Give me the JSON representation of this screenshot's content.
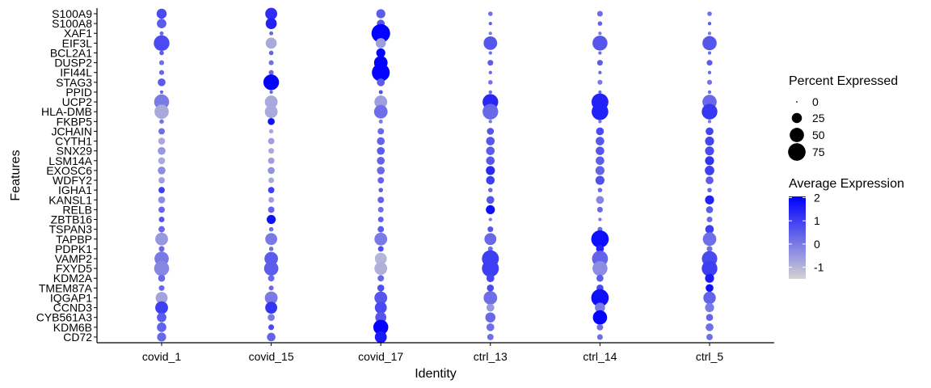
{
  "chart_data": {
    "type": "dotplot",
    "xlabel": "Identity",
    "ylabel": "Features",
    "identities": [
      "covid_1",
      "covid_15",
      "covid_17",
      "ctrl_13",
      "ctrl_14",
      "ctrl_5"
    ],
    "features": [
      "S100A9",
      "S100A8",
      "XAF1",
      "EIF3L",
      "BCL2A1",
      "DUSP2",
      "IFI44L",
      "STAG3",
      "PPID",
      "UCP2",
      "HLA-DMB",
      "FKBP5",
      "JCHAIN",
      "CYTH1",
      "SNX29",
      "LSM14A",
      "EXOSC6",
      "WDFY2",
      "IGHA1",
      "KANSL1",
      "RELB",
      "ZBTB16",
      "TSPAN3",
      "TAPBP",
      "PDPK1",
      "VAMP2",
      "FXYD5",
      "KDM2A",
      "TMEM87A",
      "IQGAP1",
      "CCND3",
      "CYB561A3",
      "KDM6B",
      "CD72"
    ],
    "percent_expressed": [
      [
        25,
        35,
        20,
        5,
        8,
        5
      ],
      [
        22,
        30,
        15,
        3,
        5,
        3
      ],
      [
        4,
        4,
        85,
        3,
        3,
        3
      ],
      [
        60,
        30,
        25,
        45,
        55,
        50
      ],
      [
        5,
        5,
        20,
        3,
        3,
        3
      ],
      [
        6,
        6,
        45,
        8,
        8,
        8
      ],
      [
        6,
        6,
        78,
        3,
        3,
        3
      ],
      [
        15,
        60,
        15,
        5,
        6,
        6
      ],
      [
        3,
        3,
        4,
        3,
        3,
        3
      ],
      [
        55,
        40,
        40,
        60,
        70,
        50
      ],
      [
        50,
        40,
        45,
        60,
        68,
        60
      ],
      [
        5,
        12,
        4,
        3,
        3,
        3
      ],
      [
        10,
        5,
        10,
        12,
        15,
        15
      ],
      [
        12,
        10,
        15,
        18,
        18,
        20
      ],
      [
        15,
        8,
        15,
        18,
        18,
        20
      ],
      [
        12,
        10,
        15,
        18,
        18,
        20
      ],
      [
        15,
        12,
        15,
        20,
        20,
        22
      ],
      [
        10,
        8,
        10,
        18,
        20,
        15
      ],
      [
        10,
        10,
        5,
        5,
        5,
        5
      ],
      [
        12,
        8,
        10,
        15,
        15,
        20
      ],
      [
        10,
        10,
        8,
        20,
        8,
        12
      ],
      [
        8,
        20,
        8,
        3,
        3,
        8
      ],
      [
        10,
        5,
        10,
        8,
        6,
        18
      ],
      [
        40,
        35,
        40,
        35,
        75,
        45
      ],
      [
        8,
        5,
        8,
        6,
        15,
        8
      ],
      [
        50,
        45,
        35,
        70,
        62,
        58
      ],
      [
        55,
        50,
        40,
        70,
        55,
        60
      ],
      [
        12,
        10,
        10,
        15,
        12,
        20
      ],
      [
        8,
        6,
        12,
        12,
        12,
        15
      ],
      [
        35,
        40,
        40,
        45,
        75,
        38
      ],
      [
        40,
        35,
        35,
        15,
        25,
        20
      ],
      [
        22,
        12,
        30,
        25,
        50,
        12
      ],
      [
        22,
        8,
        55,
        15,
        10,
        15
      ],
      [
        20,
        18,
        35,
        10,
        8,
        10
      ]
    ],
    "average_expression": [
      [
        0.8,
        1.3,
        0.5,
        0.2,
        0.2,
        0.2
      ],
      [
        0.5,
        1.5,
        0.6,
        0.4,
        0.4,
        0.5
      ],
      [
        0.3,
        0.3,
        2.0,
        0.0,
        0.0,
        0.0
      ],
      [
        0.8,
        -0.8,
        -0.6,
        0.6,
        0.6,
        0.6
      ],
      [
        0.5,
        0.4,
        2.0,
        0.2,
        0.2,
        0.2
      ],
      [
        0.2,
        0.2,
        2.0,
        0.5,
        0.5,
        0.5
      ],
      [
        0.3,
        0.3,
        2.0,
        0.3,
        0.3,
        0.3
      ],
      [
        0.5,
        2.0,
        0.5,
        0.1,
        0.0,
        0.1
      ],
      [
        0.3,
        0.3,
        0.7,
        0.2,
        0.2,
        0.2
      ],
      [
        0.0,
        -0.8,
        -0.6,
        1.4,
        1.5,
        0.3
      ],
      [
        -0.8,
        -0.8,
        0.2,
        0.3,
        1.5,
        1.1
      ],
      [
        0.1,
        1.8,
        0.0,
        0.0,
        0.0,
        0.0
      ],
      [
        0.2,
        -0.8,
        0.3,
        0.6,
        0.8,
        0.9
      ],
      [
        -0.8,
        -0.6,
        0.4,
        0.6,
        0.6,
        0.9
      ],
      [
        -0.5,
        -0.8,
        0.5,
        0.5,
        0.6,
        0.8
      ],
      [
        -0.8,
        -0.6,
        0.4,
        0.6,
        0.5,
        1.2
      ],
      [
        -0.3,
        -0.4,
        0.3,
        1.4,
        0.4,
        1.0
      ],
      [
        -0.6,
        -0.8,
        0.4,
        1.0,
        0.7,
        0.5
      ],
      [
        1.0,
        1.0,
        0.5,
        0.3,
        0.3,
        0.3
      ],
      [
        -0.3,
        -0.6,
        0.4,
        0.6,
        -0.2,
        1.5
      ],
      [
        0.3,
        0.4,
        0.2,
        1.8,
        0.3,
        0.5
      ],
      [
        0.6,
        1.8,
        0.4,
        0.0,
        0.0,
        0.3
      ],
      [
        0.3,
        0.2,
        0.5,
        0.6,
        0.2,
        1.0
      ],
      [
        -0.5,
        0.0,
        0.0,
        0.3,
        1.8,
        0.2
      ],
      [
        0.3,
        0.2,
        0.7,
        0.2,
        1.5,
        0.2
      ],
      [
        0.0,
        0.5,
        -1.0,
        1.0,
        0.4,
        0.8
      ],
      [
        -0.2,
        0.5,
        -0.9,
        1.0,
        -0.3,
        1.0
      ],
      [
        0.3,
        0.3,
        0.3,
        0.9,
        0.5,
        1.6
      ],
      [
        0.3,
        0.3,
        0.7,
        0.8,
        0.8,
        1.8
      ],
      [
        -0.7,
        0.0,
        0.6,
        0.2,
        1.8,
        0.4
      ],
      [
        1.0,
        1.2,
        0.8,
        -0.5,
        0.0,
        0.0
      ],
      [
        0.5,
        0.0,
        0.6,
        0.3,
        2.0,
        0.4
      ],
      [
        0.4,
        0.8,
        2.0,
        0.2,
        0.2,
        0.2
      ],
      [
        0.3,
        0.4,
        1.6,
        0.2,
        0.2,
        0.2
      ]
    ],
    "size_legend": {
      "title": "Percent Expressed",
      "breaks": [
        0,
        25,
        50,
        75
      ],
      "labels": [
        "0",
        "25",
        "50",
        "75"
      ]
    },
    "color_legend": {
      "title": "Average Expression",
      "breaks": [
        2,
        1,
        0,
        -1
      ],
      "labels": [
        "2",
        "1",
        "0",
        "-1"
      ],
      "range": [
        -1.5,
        2.05
      ],
      "low_color": "#d3d3d3",
      "high_color": "#0000ff"
    },
    "grid": false,
    "legend_position": "right"
  }
}
